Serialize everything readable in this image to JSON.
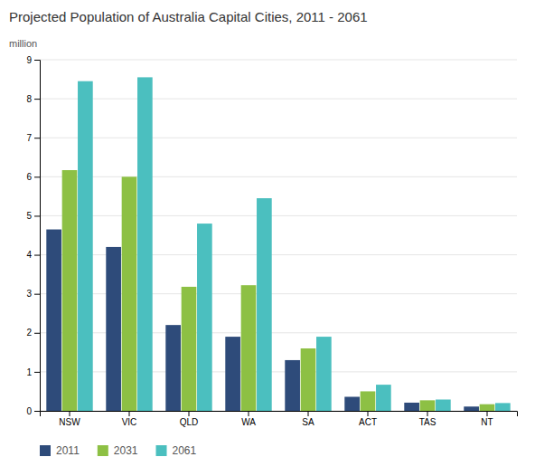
{
  "chart_data": {
    "type": "bar",
    "title": "Projected Population of Australia Capital Cities, 2011 - 2061",
    "ylabel": "million",
    "categories": [
      "NSW",
      "VIC",
      "QLD",
      "WA",
      "SA",
      "ACT",
      "TAS",
      "NT"
    ],
    "series": [
      {
        "name": "2011",
        "color": "#2E4B7A",
        "values": [
          4.65,
          4.2,
          2.2,
          1.9,
          1.3,
          0.36,
          0.21,
          0.11
        ]
      },
      {
        "name": "2031",
        "color": "#8DC044",
        "values": [
          6.17,
          6.0,
          3.18,
          3.22,
          1.6,
          0.5,
          0.27,
          0.17
        ]
      },
      {
        "name": "2061",
        "color": "#4BBFBF",
        "values": [
          8.45,
          8.55,
          4.8,
          5.45,
          1.9,
          0.67,
          0.29,
          0.2
        ]
      }
    ],
    "ylim": [
      0,
      9
    ],
    "yticks": [
      0,
      1,
      2,
      3,
      4,
      5,
      6,
      7,
      8,
      9
    ],
    "grid": true,
    "legend": "bottom"
  }
}
